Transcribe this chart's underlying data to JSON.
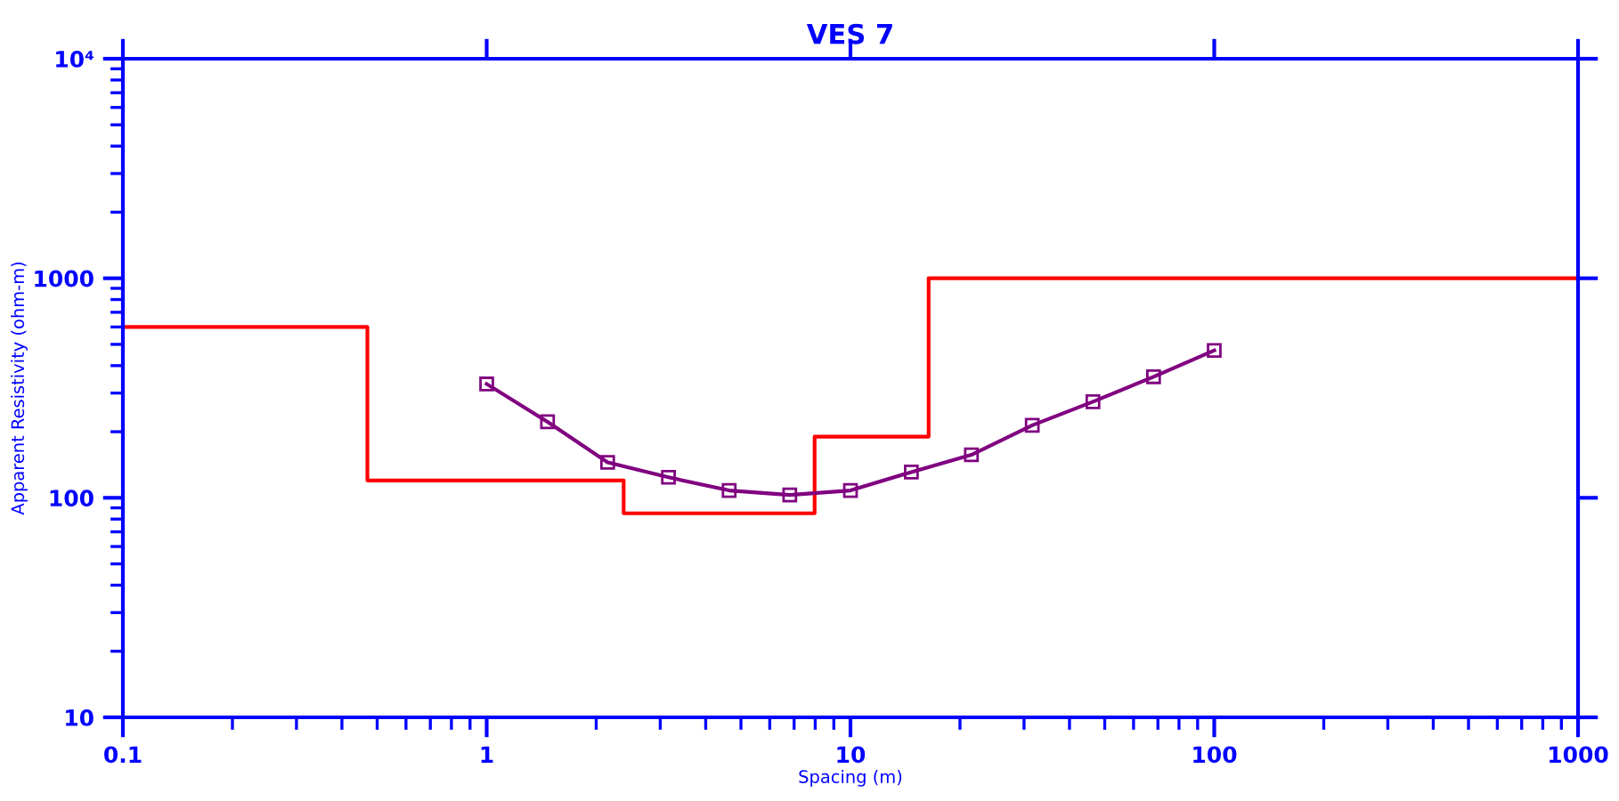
{
  "chart_data": {
    "type": "line",
    "title": "VES 7",
    "xlabel": "Spacing (m)",
    "ylabel": "Apparent Resistivity (ohm-m)",
    "log": "xy",
    "grid": false,
    "legend": false,
    "xlim": [
      0.1,
      1000
    ],
    "ylim": [
      10,
      10000
    ],
    "xticks": [
      0.1,
      1,
      10,
      100,
      1000
    ],
    "yticks": [
      10,
      100,
      1000,
      {
        "value": 10000,
        "label": "10⁴"
      }
    ],
    "series": [
      {
        "type": "step",
        "color": "#ff0000",
        "marker": "none",
        "line_style": "solid",
        "x": [
          0.1,
          0.47,
          2.38,
          7.97,
          16.4,
          1000
        ],
        "values": [
          600,
          120,
          85,
          190,
          1000,
          1000
        ]
      },
      {
        "color": "#800080",
        "marker": "square",
        "line_style": "solid",
        "x": [
          1,
          1.47,
          2.15,
          3.16,
          4.64,
          6.81,
          10,
          14.7,
          21.5,
          31.6,
          46.4,
          68.1,
          100
        ],
        "values": [
          330,
          222,
          145,
          124,
          108,
          103,
          108,
          131,
          157,
          214,
          274,
          356,
          469
        ]
      }
    ]
  }
}
